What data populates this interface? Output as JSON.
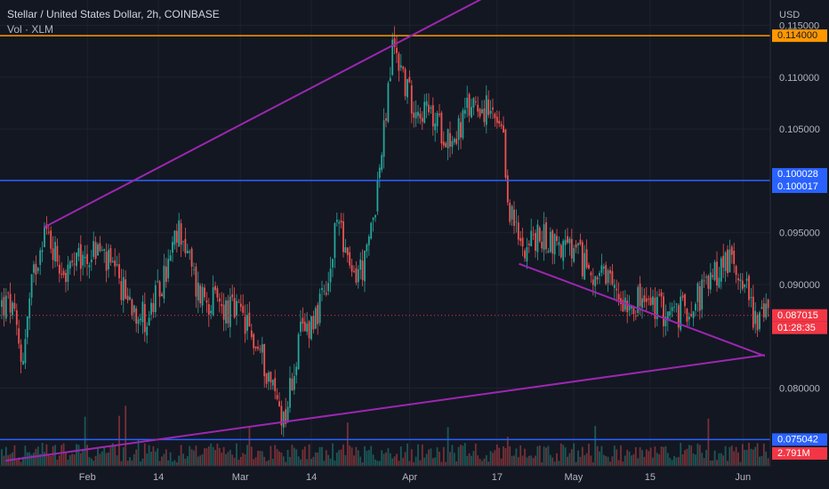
{
  "header": {
    "title": "Stellar / United States Dollar, 2h, COINBASE",
    "volume_label": "Vol · XLM"
  },
  "price_axis": {
    "currency": "USD",
    "ticks": [
      "0.115000",
      "0.110000",
      "0.105000",
      "0.100000",
      "0.095000",
      "0.090000",
      "0.080000"
    ]
  },
  "time_axis": {
    "ticks": [
      "Feb",
      "14",
      "Mar",
      "14",
      "Apr",
      "17",
      "May",
      "15",
      "Jun"
    ]
  },
  "badges": {
    "orange_level": "0.114000",
    "blue_upper_a": "0.100028",
    "blue_upper_b": "0.100017",
    "blue_lower": "0.075042",
    "last_price": "0.087015",
    "countdown": "01:28:35",
    "volume": "2.791M"
  },
  "colors": {
    "background": "#131722",
    "up_candle": "#26a69a",
    "down_candle": "#ef5350",
    "trendline": "#9c27b0",
    "orange_line": "#ff9800",
    "blue_line": "#2962ff",
    "last_price_badge": "#f23645"
  },
  "chart_data": {
    "type": "candlestick",
    "symbol": "XLM/USD",
    "interval": "2h",
    "exchange": "COINBASE",
    "currency": "USD",
    "ylim": [
      0.0725,
      0.1165
    ],
    "path": [
      {
        "t": "Jan 18",
        "price": 0.088
      },
      {
        "t": "Jan 20",
        "price": 0.0825
      },
      {
        "t": "Jan 22",
        "price": 0.0905
      },
      {
        "t": "Jan 24",
        "price": 0.0955
      },
      {
        "t": "Jan 28",
        "price": 0.091
      },
      {
        "t": "Feb 3",
        "price": 0.0935
      },
      {
        "t": "Feb 8",
        "price": 0.089
      },
      {
        "t": "Feb 12",
        "price": 0.0865
      },
      {
        "t": "Feb 15",
        "price": 0.0905
      },
      {
        "t": "Feb 18",
        "price": 0.0955
      },
      {
        "t": "Feb 21",
        "price": 0.0895
      },
      {
        "t": "Feb 25",
        "price": 0.088
      },
      {
        "t": "Mar 1",
        "price": 0.087
      },
      {
        "t": "Mar 5",
        "price": 0.083
      },
      {
        "t": "Mar 9",
        "price": 0.077
      },
      {
        "t": "Mar 12",
        "price": 0.085
      },
      {
        "t": "Mar 17",
        "price": 0.089
      },
      {
        "t": "Mar 19",
        "price": 0.0975
      },
      {
        "t": "Mar 21",
        "price": 0.0905
      },
      {
        "t": "Mar 24",
        "price": 0.092
      },
      {
        "t": "Mar 27",
        "price": 0.103
      },
      {
        "t": "Mar 29",
        "price": 0.1135
      },
      {
        "t": "Apr 1",
        "price": 0.108
      },
      {
        "t": "Apr 5",
        "price": 0.106
      },
      {
        "t": "Apr 9",
        "price": 0.104
      },
      {
        "t": "Apr 13",
        "price": 0.108
      },
      {
        "t": "Apr 16",
        "price": 0.106
      },
      {
        "t": "Apr 18",
        "price": 0.104
      },
      {
        "t": "Apr 19",
        "price": 0.098
      },
      {
        "t": "Apr 21",
        "price": 0.094
      },
      {
        "t": "Apr 26",
        "price": 0.0945
      },
      {
        "t": "May 1",
        "price": 0.093
      },
      {
        "t": "May 5",
        "price": 0.091
      },
      {
        "t": "May 9",
        "price": 0.089
      },
      {
        "t": "May 15",
        "price": 0.088
      },
      {
        "t": "May 20",
        "price": 0.087
      },
      {
        "t": "May 25",
        "price": 0.0895
      },
      {
        "t": "May 29",
        "price": 0.0925
      },
      {
        "t": "Jun 1",
        "price": 0.091
      },
      {
        "t": "Jun 3",
        "price": 0.087
      }
    ],
    "last_price": 0.087015,
    "horizontal_levels": [
      {
        "label": "0.114000",
        "price": 0.114,
        "color": "#ff9800"
      },
      {
        "label": "0.100028",
        "price": 0.100028,
        "color": "#2962ff"
      },
      {
        "label": "0.075042",
        "price": 0.075042,
        "color": "#2962ff"
      }
    ],
    "trendlines": [
      {
        "from": {
          "t": "Jan 24",
          "price": 0.0955
        },
        "to": {
          "t": "Apr 14",
          "price": 0.1175
        }
      },
      {
        "from": {
          "t": "Apr 21",
          "price": 0.092
        },
        "to": {
          "t": "Jun 5",
          "price": 0.0831
        }
      },
      {
        "from": {
          "t": "Jan 17",
          "price": 0.073
        },
        "to": {
          "t": "Jun 5",
          "price": 0.0832
        }
      }
    ],
    "volume_series_label": "Vol · XLM",
    "last_volume": "2.791M"
  }
}
